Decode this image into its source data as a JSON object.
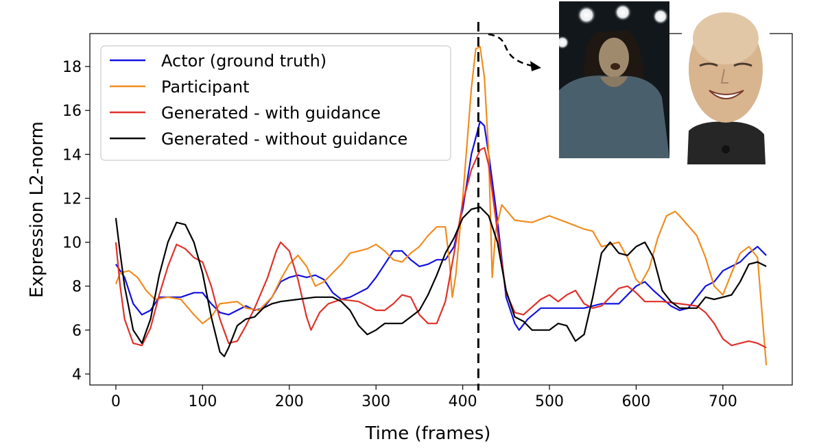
{
  "chart_data": {
    "type": "line",
    "xlabel": "Time (frames)",
    "ylabel": "Expression L2-norm",
    "xlim": [
      -30,
      780
    ],
    "ylim": [
      3.5,
      19.5
    ],
    "xticks": [
      0,
      100,
      200,
      300,
      400,
      500,
      600,
      700
    ],
    "yticks": [
      4,
      6,
      8,
      10,
      12,
      14,
      16,
      18
    ],
    "marker_frame": 418,
    "legend_position": "top-left",
    "series": [
      {
        "name": "Actor (ground truth)",
        "color": "#1010e0",
        "points": [
          [
            0,
            9.0
          ],
          [
            10,
            8.4
          ],
          [
            20,
            7.2
          ],
          [
            30,
            6.7
          ],
          [
            40,
            6.9
          ],
          [
            50,
            7.5
          ],
          [
            60,
            7.5
          ],
          [
            75,
            7.5
          ],
          [
            90,
            7.7
          ],
          [
            100,
            7.7
          ],
          [
            110,
            7.2
          ],
          [
            120,
            6.8
          ],
          [
            130,
            6.7
          ],
          [
            140,
            6.9
          ],
          [
            150,
            7.1
          ],
          [
            160,
            6.9
          ],
          [
            170,
            7.0
          ],
          [
            180,
            7.5
          ],
          [
            190,
            8.2
          ],
          [
            200,
            8.4
          ],
          [
            210,
            8.5
          ],
          [
            220,
            8.4
          ],
          [
            230,
            8.5
          ],
          [
            240,
            8.3
          ],
          [
            250,
            7.7
          ],
          [
            260,
            7.4
          ],
          [
            270,
            7.5
          ],
          [
            280,
            7.7
          ],
          [
            290,
            7.9
          ],
          [
            300,
            8.4
          ],
          [
            310,
            9.0
          ],
          [
            320,
            9.6
          ],
          [
            330,
            9.6
          ],
          [
            340,
            9.2
          ],
          [
            350,
            8.9
          ],
          [
            360,
            9.0
          ],
          [
            370,
            9.2
          ],
          [
            380,
            9.2
          ],
          [
            390,
            9.8
          ],
          [
            400,
            11.5
          ],
          [
            410,
            14.0
          ],
          [
            420,
            15.5
          ],
          [
            425,
            15.3
          ],
          [
            430,
            14.0
          ],
          [
            440,
            11.0
          ],
          [
            450,
            7.5
          ],
          [
            460,
            6.3
          ],
          [
            465,
            6.0
          ],
          [
            475,
            6.5
          ],
          [
            490,
            7.0
          ],
          [
            500,
            7.0
          ],
          [
            520,
            7.0
          ],
          [
            540,
            7.0
          ],
          [
            560,
            7.2
          ],
          [
            580,
            7.2
          ],
          [
            600,
            8.0
          ],
          [
            610,
            8.2
          ],
          [
            620,
            7.8
          ],
          [
            640,
            7.1
          ],
          [
            650,
            6.9
          ],
          [
            660,
            7.0
          ],
          [
            680,
            8.0
          ],
          [
            690,
            8.2
          ],
          [
            700,
            8.7
          ],
          [
            710,
            8.9
          ],
          [
            720,
            9.1
          ],
          [
            730,
            9.5
          ],
          [
            740,
            9.8
          ],
          [
            750,
            9.4
          ]
        ]
      },
      {
        "name": "Participant",
        "color": "#f08c1e",
        "points": [
          [
            0,
            8.1
          ],
          [
            5,
            8.6
          ],
          [
            15,
            8.7
          ],
          [
            25,
            8.4
          ],
          [
            35,
            7.8
          ],
          [
            45,
            7.4
          ],
          [
            60,
            7.5
          ],
          [
            75,
            7.4
          ],
          [
            90,
            6.7
          ],
          [
            100,
            6.3
          ],
          [
            110,
            6.6
          ],
          [
            120,
            7.2
          ],
          [
            140,
            7.3
          ],
          [
            150,
            7.0
          ],
          [
            165,
            6.9
          ],
          [
            180,
            7.5
          ],
          [
            190,
            8.3
          ],
          [
            200,
            9.0
          ],
          [
            210,
            9.4
          ],
          [
            220,
            8.9
          ],
          [
            230,
            8.0
          ],
          [
            240,
            8.2
          ],
          [
            250,
            8.6
          ],
          [
            260,
            9.0
          ],
          [
            270,
            9.5
          ],
          [
            280,
            9.6
          ],
          [
            290,
            9.7
          ],
          [
            300,
            9.9
          ],
          [
            310,
            9.6
          ],
          [
            320,
            9.2
          ],
          [
            330,
            9.1
          ],
          [
            340,
            9.5
          ],
          [
            350,
            9.8
          ],
          [
            360,
            10.3
          ],
          [
            370,
            10.7
          ],
          [
            380,
            10.7
          ],
          [
            385,
            9.0
          ],
          [
            388,
            7.5
          ],
          [
            392,
            8.5
          ],
          [
            400,
            12.0
          ],
          [
            410,
            17.0
          ],
          [
            415,
            18.8
          ],
          [
            420,
            18.9
          ],
          [
            425,
            17.5
          ],
          [
            430,
            14.0
          ],
          [
            434,
            8.4
          ],
          [
            438,
            10.5
          ],
          [
            445,
            11.7
          ],
          [
            460,
            11.0
          ],
          [
            480,
            10.9
          ],
          [
            500,
            11.2
          ],
          [
            520,
            10.9
          ],
          [
            540,
            10.6
          ],
          [
            550,
            10.5
          ],
          [
            560,
            9.8
          ],
          [
            580,
            10.0
          ],
          [
            590,
            9.3
          ],
          [
            600,
            8.3
          ],
          [
            605,
            8.1
          ],
          [
            615,
            8.8
          ],
          [
            625,
            10.2
          ],
          [
            635,
            11.2
          ],
          [
            645,
            11.4
          ],
          [
            650,
            11.2
          ],
          [
            670,
            10.3
          ],
          [
            680,
            9.3
          ],
          [
            690,
            8.0
          ],
          [
            700,
            7.6
          ],
          [
            710,
            8.6
          ],
          [
            720,
            9.5
          ],
          [
            730,
            9.8
          ],
          [
            740,
            9.3
          ],
          [
            750,
            4.4
          ]
        ]
      },
      {
        "name": "Generated - with guidance",
        "color": "#e0302a",
        "points": [
          [
            0,
            10.0
          ],
          [
            5,
            8.0
          ],
          [
            10,
            6.5
          ],
          [
            20,
            5.4
          ],
          [
            30,
            5.3
          ],
          [
            40,
            6.1
          ],
          [
            50,
            7.6
          ],
          [
            60,
            8.9
          ],
          [
            70,
            9.9
          ],
          [
            80,
            9.7
          ],
          [
            90,
            9.3
          ],
          [
            100,
            9.1
          ],
          [
            110,
            8.0
          ],
          [
            120,
            6.5
          ],
          [
            130,
            5.4
          ],
          [
            140,
            5.5
          ],
          [
            150,
            6.2
          ],
          [
            160,
            7.0
          ],
          [
            175,
            8.4
          ],
          [
            185,
            9.6
          ],
          [
            190,
            10.0
          ],
          [
            200,
            9.6
          ],
          [
            210,
            8.3
          ],
          [
            220,
            6.6
          ],
          [
            225,
            6.0
          ],
          [
            235,
            6.8
          ],
          [
            245,
            7.2
          ],
          [
            260,
            7.4
          ],
          [
            280,
            7.3
          ],
          [
            300,
            6.9
          ],
          [
            310,
            6.9
          ],
          [
            320,
            7.2
          ],
          [
            330,
            7.6
          ],
          [
            340,
            7.5
          ],
          [
            350,
            6.7
          ],
          [
            360,
            6.3
          ],
          [
            370,
            6.3
          ],
          [
            380,
            7.3
          ],
          [
            390,
            9.5
          ],
          [
            400,
            11.8
          ],
          [
            410,
            13.3
          ],
          [
            420,
            14.2
          ],
          [
            425,
            14.3
          ],
          [
            430,
            13.5
          ],
          [
            440,
            10.5
          ],
          [
            450,
            7.7
          ],
          [
            460,
            6.8
          ],
          [
            470,
            6.7
          ],
          [
            490,
            7.4
          ],
          [
            500,
            7.6
          ],
          [
            510,
            7.3
          ],
          [
            520,
            7.6
          ],
          [
            530,
            7.8
          ],
          [
            540,
            7.2
          ],
          [
            550,
            7.0
          ],
          [
            560,
            7.1
          ],
          [
            570,
            7.5
          ],
          [
            580,
            7.9
          ],
          [
            590,
            8.0
          ],
          [
            600,
            7.7
          ],
          [
            610,
            7.3
          ],
          [
            630,
            7.3
          ],
          [
            650,
            7.2
          ],
          [
            670,
            7.1
          ],
          [
            680,
            6.8
          ],
          [
            690,
            6.3
          ],
          [
            700,
            5.6
          ],
          [
            710,
            5.3
          ],
          [
            720,
            5.4
          ],
          [
            730,
            5.5
          ],
          [
            740,
            5.4
          ],
          [
            750,
            5.2
          ]
        ]
      },
      {
        "name": "Generated - without guidance",
        "color": "#000000",
        "points": [
          [
            0,
            11.1
          ],
          [
            5,
            9.5
          ],
          [
            10,
            8.0
          ],
          [
            20,
            6.0
          ],
          [
            30,
            5.4
          ],
          [
            40,
            6.5
          ],
          [
            50,
            8.5
          ],
          [
            60,
            10.0
          ],
          [
            70,
            10.9
          ],
          [
            80,
            10.8
          ],
          [
            90,
            10.0
          ],
          [
            100,
            8.6
          ],
          [
            110,
            6.6
          ],
          [
            120,
            5.0
          ],
          [
            125,
            4.8
          ],
          [
            130,
            5.2
          ],
          [
            140,
            6.2
          ],
          [
            150,
            6.5
          ],
          [
            160,
            6.6
          ],
          [
            170,
            7.0
          ],
          [
            180,
            7.2
          ],
          [
            190,
            7.3
          ],
          [
            210,
            7.4
          ],
          [
            230,
            7.5
          ],
          [
            250,
            7.5
          ],
          [
            260,
            7.3
          ],
          [
            270,
            6.9
          ],
          [
            280,
            6.2
          ],
          [
            290,
            5.8
          ],
          [
            300,
            6.0
          ],
          [
            310,
            6.3
          ],
          [
            330,
            6.3
          ],
          [
            340,
            6.6
          ],
          [
            350,
            6.9
          ],
          [
            360,
            7.6
          ],
          [
            370,
            8.5
          ],
          [
            380,
            9.5
          ],
          [
            390,
            10.2
          ],
          [
            400,
            11.1
          ],
          [
            410,
            11.5
          ],
          [
            420,
            11.6
          ],
          [
            430,
            11.2
          ],
          [
            440,
            10.0
          ],
          [
            450,
            7.8
          ],
          [
            460,
            6.6
          ],
          [
            470,
            6.4
          ],
          [
            480,
            6.0
          ],
          [
            500,
            6.0
          ],
          [
            510,
            6.3
          ],
          [
            520,
            6.2
          ],
          [
            530,
            5.5
          ],
          [
            540,
            5.8
          ],
          [
            550,
            7.5
          ],
          [
            560,
            9.5
          ],
          [
            570,
            10.0
          ],
          [
            580,
            9.5
          ],
          [
            590,
            9.4
          ],
          [
            600,
            9.8
          ],
          [
            610,
            10.0
          ],
          [
            620,
            9.3
          ],
          [
            630,
            7.8
          ],
          [
            640,
            7.3
          ],
          [
            650,
            7.0
          ],
          [
            670,
            7.0
          ],
          [
            680,
            7.5
          ],
          [
            690,
            7.4
          ],
          [
            700,
            7.5
          ],
          [
            710,
            7.6
          ],
          [
            720,
            8.2
          ],
          [
            730,
            9.0
          ],
          [
            740,
            9.1
          ],
          [
            750,
            8.9
          ]
        ]
      }
    ]
  },
  "photos": [
    {
      "name": "participant-photo"
    },
    {
      "name": "avatar-render"
    }
  ]
}
